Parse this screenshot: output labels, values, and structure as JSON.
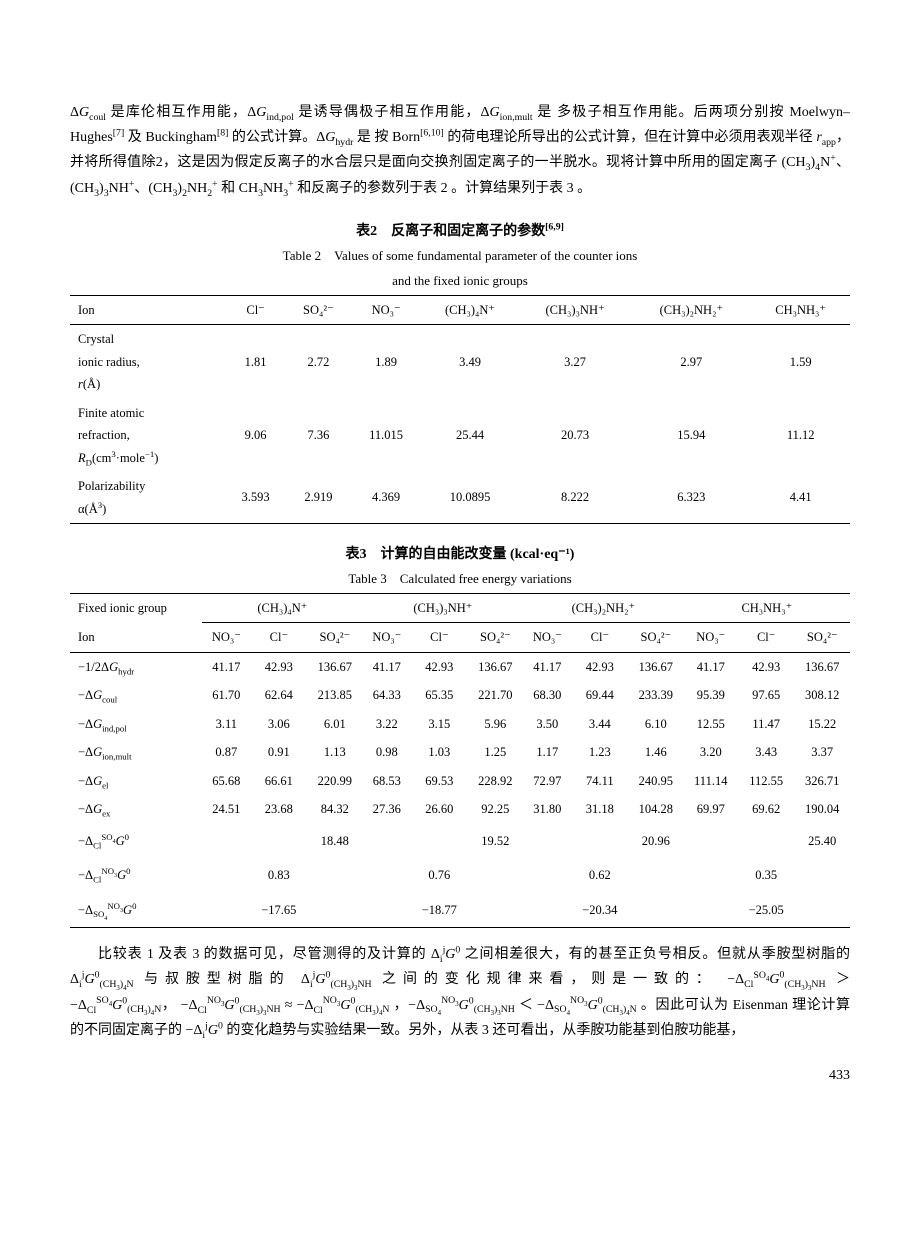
{
  "paragraphs": {
    "intro_html": "Δ<i>G</i><sub>coul</sub> 是库伦相互作用能，Δ<i>G</i><sub>ind,pol</sub> 是诱导偶极子相互作用能，Δ<i>G</i><sub>ion,mult</sub> 是 多极子相互作用能。后两项分别按 Moelwyn–Hughes<sup>[7]</sup> 及 Buckingham<sup>[8]</sup> 的公式计算。Δ<i>G</i><sub>hydr</sub> 是 按 Born<sup>[6,10]</sup> 的荷电理论所导出的公式计算，但在计算中必须用表观半径 <i>r</i><sub>app</sub>，并将所得值除2，这是因为假定反离子的水合层只是面向交换剂固定离子的一半脱水。现将计算中所用的固定离子 (CH<sub>3</sub>)<sub>4</sub>N<sup>+</sup>、(CH<sub>3</sub>)<sub>3</sub>NH<sup>+</sup>、(CH<sub>3</sub>)<sub>2</sub>NH<sub>2</sub><sup>+</sup> 和 CH<sub>3</sub>NH<sub>3</sub><sup>+</sup> 和反离子的参数列于表 2 。计算结果列于表 3 。",
    "discussion_html": "比较表 1 及表 3 的数据可见，尽管测得的及计算的 Δ<sub>i</sub><sup>j</sup><i>G</i><sup>0</sup> 之间相差很大，有的甚至正负号相反。但就从季胺型树脂的 Δ<sub>i</sub><sup>j</sup><i>G</i><sup>0</sup><sub>(CH<sub>3</sub>)<sub>4</sub>N</sub> 与叔胺型树脂的 Δ<sub>i</sub><sup>j</sup><i>G</i><sup>0</sup><sub>(CH<sub>3</sub>)<sub>3</sub>NH</sub> 之间的变化规律来看，则是一致的：&nbsp;−Δ<sub>Cl</sub><sup>SO<sub>4</sub></sup><i>G</i><sup>0</sup><sub>(CH<sub>3</sub>)<sub>3</sub>NH</sub> ＞ −Δ<sub>Cl</sub><sup>SO<sub>4</sub></sup><i>G</i><sup>0</sup><sub>(CH<sub>3</sub>)<sub>4</sub>N</sub>，&nbsp;−Δ<sub>Cl</sub><sup>NO<sub>3</sub></sup><i>G</i><sup>0</sup><sub>(CH<sub>3</sub>)<sub>3</sub>NH</sub> ≈ −Δ<sub>Cl</sub><sup>NO<sub>3</sub></sup><i>G</i><sup>0</sup><sub>(CH<sub>3</sub>)<sub>4</sub>N</sub> ，−Δ<sub>SO<sub>4</sub></sub><sup>NO<sub>3</sub></sup><i>G</i><sup>0</sup><sub>(CH<sub>3</sub>)<sub>3</sub>NH</sub> ＜ −Δ<sub>SO<sub>4</sub></sub><sup>NO<sub>3</sub></sup><i>G</i><sup>0</sup><sub>(CH<sub>3</sub>)<sub>4</sub>N</sub> 。因此可认为 Eisenman 理论计算的不同固定离子的 −Δ<sub>i</sub><sup>j</sup><i>G</i><sup>0</sup> 的变化趋势与实验结果一致。另外，从表 3 还可看出，从季胺功能基到伯胺功能基，"
  },
  "table2": {
    "caption_cn": "表2　反离子和固定离子的参数",
    "caption_ref": "[6,9]",
    "caption_en_line1": "Table 2　Values of some fundamental parameter of the counter ions",
    "caption_en_line2": "and the fixed ionic groups",
    "header": [
      "Ion",
      "Cl⁻",
      "SO₄²⁻",
      "NO₃⁻",
      "(CH₃)₄N⁺",
      "(CH₃)₃NH⁺",
      "(CH₃)₂NH₂⁺",
      "CH₃NH₃⁺"
    ],
    "rows": [
      {
        "label_html": "Crystal<br>ionic radius,<br><i>r</i>(Å)",
        "vals": [
          "1.81",
          "2.72",
          "1.89",
          "3.49",
          "3.27",
          "2.97",
          "1.59"
        ]
      },
      {
        "label_html": "Finite atomic<br>refraction,<br><i>R</i><sub>D</sub>(cm<sup>3</sup>·mole<sup>−1</sup>)",
        "vals": [
          "9.06",
          "7.36",
          "11.015",
          "25.44",
          "20.73",
          "15.94",
          "11.12"
        ]
      },
      {
        "label_html": "Polarizability<br>α(Å<sup>3</sup>)",
        "vals": [
          "3.593",
          "2.919",
          "4.369",
          "10.0895",
          "8.222",
          "6.323",
          "4.41"
        ]
      }
    ]
  },
  "table3": {
    "caption_cn": "表3　计算的自由能改变量 (kcal·eq⁻¹)",
    "caption_en": "Table 3　Calculated free energy variations",
    "group_label": "Fixed ionic group",
    "ion_label": "Ion",
    "groups": [
      "(CH₃)₄N⁺",
      "(CH₃)₃NH⁺",
      "(CH₃)₂NH₂⁺",
      "CH₃NH₃⁺"
    ],
    "subcols": [
      "NO₃⁻",
      "Cl⁻",
      "SO₄²⁻"
    ],
    "rows": [
      {
        "label_html": "−1/2Δ<i>G</i><sub>hydr</sub>",
        "vals": [
          "41.17",
          "42.93",
          "136.67",
          "41.17",
          "42.93",
          "136.67",
          "41.17",
          "42.93",
          "136.67",
          "41.17",
          "42.93",
          "136.67"
        ]
      },
      {
        "label_html": "−Δ<i>G</i><sub>coul</sub>",
        "vals": [
          "61.70",
          "62.64",
          "213.85",
          "64.33",
          "65.35",
          "221.70",
          "68.30",
          "69.44",
          "233.39",
          "95.39",
          "97.65",
          "308.12"
        ]
      },
      {
        "label_html": "−Δ<i>G</i><sub>ind,pol</sub>",
        "vals": [
          "3.11",
          "3.06",
          "6.01",
          "3.22",
          "3.15",
          "5.96",
          "3.50",
          "3.44",
          "6.10",
          "12.55",
          "11.47",
          "15.22"
        ]
      },
      {
        "label_html": "−Δ<i>G</i><sub>ion,mult</sub>",
        "vals": [
          "0.87",
          "0.91",
          "1.13",
          "0.98",
          "1.03",
          "1.25",
          "1.17",
          "1.23",
          "1.46",
          "3.20",
          "3.43",
          "3.37"
        ]
      },
      {
        "label_html": "−Δ<i>G</i><sub>el</sub>",
        "vals": [
          "65.68",
          "66.61",
          "220.99",
          "68.53",
          "69.53",
          "228.92",
          "72.97",
          "74.11",
          "240.95",
          "111.14",
          "112.55",
          "326.71"
        ]
      },
      {
        "label_html": "−Δ<i>G</i><sub>ex</sub>",
        "vals": [
          "24.51",
          "23.68",
          "84.32",
          "27.36",
          "26.60",
          "92.25",
          "31.80",
          "31.18",
          "104.28",
          "69.97",
          "69.62",
          "190.04"
        ]
      }
    ],
    "delta_rows": [
      {
        "label_html": "−Δ<sub>Cl</sub><sup>SO<sub>4</sub></sup><i>G</i><sup>0</sup>",
        "col": 2,
        "vals": [
          "18.48",
          "19.52",
          "20.96",
          "25.40"
        ]
      },
      {
        "label_html": "−Δ<sub>Cl</sub><sup>NO<sub>3</sub></sup><i>G</i><sup>0</sup>",
        "col": 1,
        "vals": [
          "0.83",
          "0.76",
          "0.62",
          "0.35"
        ]
      },
      {
        "label_html": "−Δ<sub>SO<sub>4</sub></sub><sup>NO<sub>3</sub></sup><i>G</i><sup>0</sup>",
        "col": 1,
        "vals": [
          "−17.65",
          "−18.77",
          "−20.34",
          "−25.05"
        ]
      }
    ]
  },
  "page_number": "433"
}
